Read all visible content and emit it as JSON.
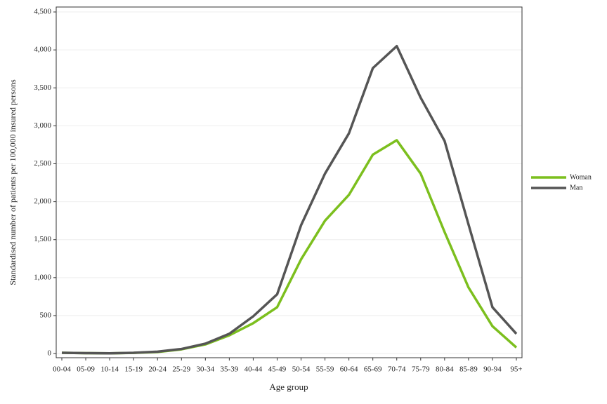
{
  "chart_data": {
    "type": "line",
    "x_label": "Age group",
    "y_label": "Standardised number of patients per 100,000 insured persons",
    "categories": [
      "00-04",
      "05-09",
      "10-14",
      "15-19",
      "20-24",
      "25-29",
      "30-34",
      "35-39",
      "40-44",
      "45-49",
      "50-54",
      "55-59",
      "60-64",
      "65-69",
      "70-74",
      "75-79",
      "80-84",
      "85-89",
      "90-94",
      "95+"
    ],
    "series": [
      {
        "name": "Woman",
        "color": "#7cbf1e",
        "values": [
          10,
          5,
          3,
          8,
          20,
          55,
          120,
          240,
          400,
          610,
          1240,
          1750,
          2090,
          2620,
          2810,
          2370,
          1600,
          870,
          360,
          80
        ]
      },
      {
        "name": "Man",
        "color": "#555555",
        "values": [
          10,
          5,
          3,
          10,
          25,
          60,
          130,
          260,
          490,
          780,
          1690,
          2370,
          2900,
          3760,
          4050,
          3370,
          2800,
          1700,
          610,
          260
        ]
      }
    ],
    "ylim": [
      -55,
      4565
    ],
    "yticks": [
      0,
      500,
      {
        "value": 1000,
        "label": "1,000"
      },
      {
        "value": 1500,
        "label": "1,500"
      },
      {
        "value": 2000,
        "label": "2,000"
      },
      {
        "value": 2500,
        "label": "2,500"
      },
      {
        "value": 3000,
        "label": "3,000"
      },
      {
        "value": 3500,
        "label": "3,500"
      },
      {
        "value": 4000,
        "label": "4,000"
      },
      {
        "value": 4500,
        "label": "4,500"
      }
    ],
    "grid": true,
    "legend": "right"
  }
}
